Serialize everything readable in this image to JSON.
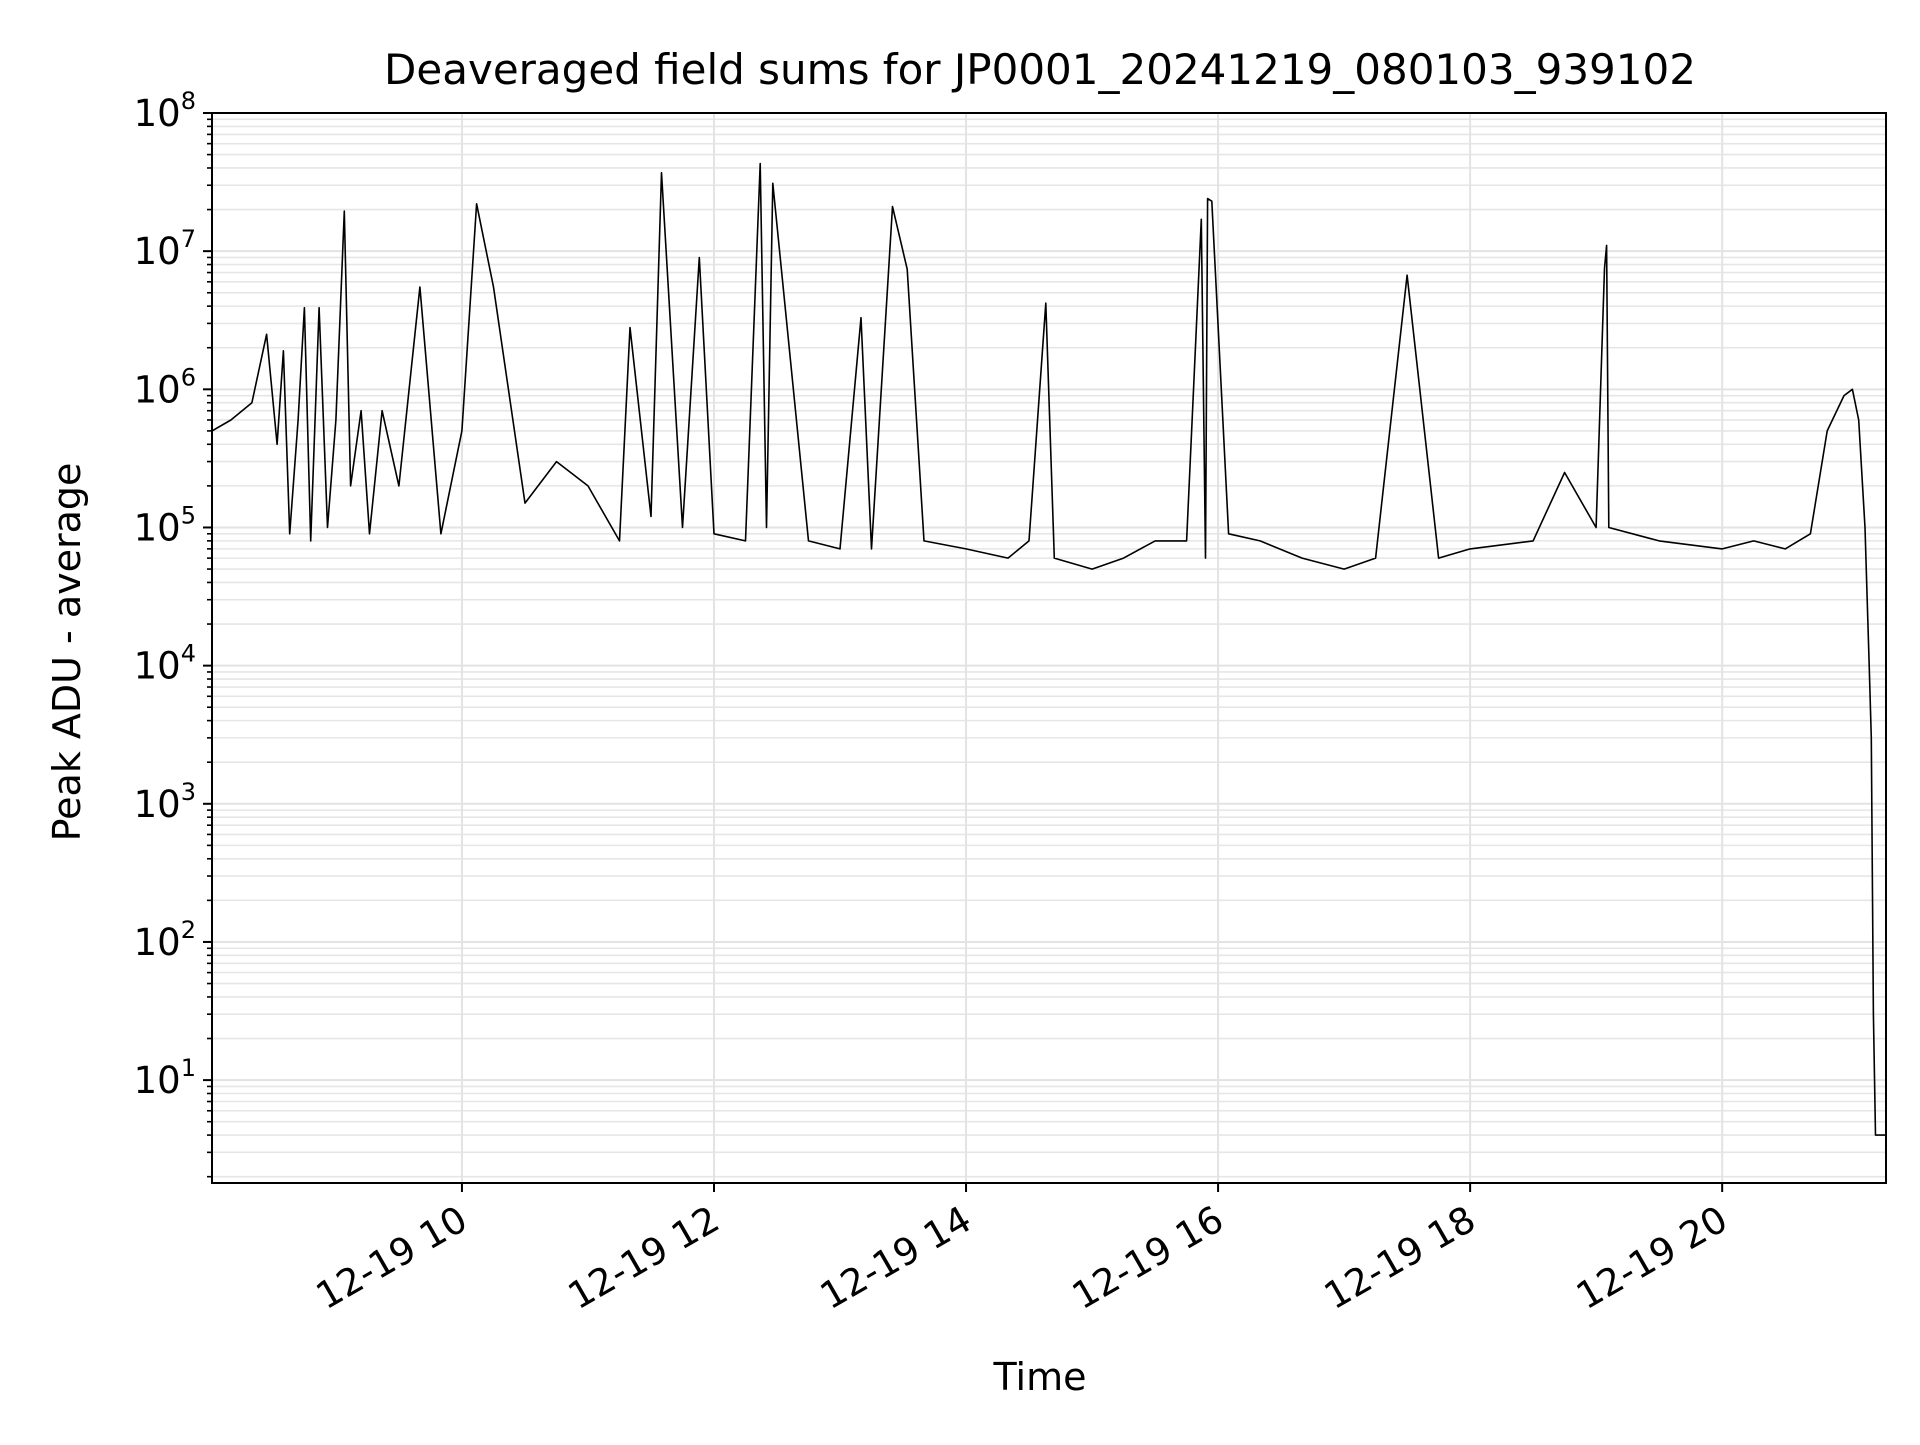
{
  "chart_data": {
    "type": "line",
    "title": "Deaveraged field sums for JP0001_20241219_080103_939102",
    "xlabel": "Time",
    "ylabel": "Peak ADU - average",
    "xscale": "time",
    "yscale": "log",
    "xlim": [
      "2024-12-19 08:01",
      "2024-12-19 21:18"
    ],
    "ylim": [
      1.8,
      100000000
    ],
    "grid": true,
    "x_ticks": [
      {
        "value": "2024-12-19 10:00",
        "label": "12-19 10"
      },
      {
        "value": "2024-12-19 12:00",
        "label": "12-19 12"
      },
      {
        "value": "2024-12-19 14:00",
        "label": "12-19 14"
      },
      {
        "value": "2024-12-19 16:00",
        "label": "12-19 16"
      },
      {
        "value": "2024-12-19 18:00",
        "label": "12-19 18"
      },
      {
        "value": "2024-12-19 20:00",
        "label": "12-19 20"
      }
    ],
    "y_ticks": [
      {
        "value": 10,
        "base": "10",
        "exp": "1"
      },
      {
        "value": 100,
        "base": "10",
        "exp": "2"
      },
      {
        "value": 1000,
        "base": "10",
        "exp": "3"
      },
      {
        "value": 10000,
        "base": "10",
        "exp": "4"
      },
      {
        "value": 100000,
        "base": "10",
        "exp": "5"
      },
      {
        "value": 1000000,
        "base": "10",
        "exp": "6"
      },
      {
        "value": 10000000,
        "base": "10",
        "exp": "7"
      },
      {
        "value": 100000000,
        "base": "10",
        "exp": "8"
      }
    ],
    "series": [
      {
        "color": "#000000",
        "x": [
          "2024-12-19 08:01",
          "2024-12-19 08:10",
          "2024-12-19 08:20",
          "2024-12-19 08:27",
          "2024-12-19 08:32",
          "2024-12-19 08:35",
          "2024-12-19 08:38",
          "2024-12-19 08:42",
          "2024-12-19 08:45",
          "2024-12-19 08:48",
          "2024-12-19 08:52",
          "2024-12-19 08:56",
          "2024-12-19 09:00",
          "2024-12-19 09:04",
          "2024-12-19 09:07",
          "2024-12-19 09:12",
          "2024-12-19 09:16",
          "2024-12-19 09:22",
          "2024-12-19 09:30",
          "2024-12-19 09:40",
          "2024-12-19 09:50",
          "2024-12-19 10:00",
          "2024-12-19 10:07",
          "2024-12-19 10:15",
          "2024-12-19 10:30",
          "2024-12-19 10:45",
          "2024-12-19 11:00",
          "2024-12-19 11:15",
          "2024-12-19 11:20",
          "2024-12-19 11:30",
          "2024-12-19 11:35",
          "2024-12-19 11:45",
          "2024-12-19 11:53",
          "2024-12-19 12:00",
          "2024-12-19 12:15",
          "2024-12-19 12:22",
          "2024-12-19 12:25",
          "2024-12-19 12:28",
          "2024-12-19 12:45",
          "2024-12-19 13:00",
          "2024-12-19 13:10",
          "2024-12-19 13:15",
          "2024-12-19 13:25",
          "2024-12-19 13:32",
          "2024-12-19 13:40",
          "2024-12-19 14:00",
          "2024-12-19 14:20",
          "2024-12-19 14:30",
          "2024-12-19 14:38",
          "2024-12-19 14:42",
          "2024-12-19 15:00",
          "2024-12-19 15:15",
          "2024-12-19 15:30",
          "2024-12-19 15:45",
          "2024-12-19 15:52",
          "2024-12-19 15:54",
          "2024-12-19 15:55",
          "2024-12-19 15:57",
          "2024-12-19 16:05",
          "2024-12-19 16:20",
          "2024-12-19 16:40",
          "2024-12-19 17:00",
          "2024-12-19 17:15",
          "2024-12-19 17:30",
          "2024-12-19 17:45",
          "2024-12-19 18:00",
          "2024-12-19 18:30",
          "2024-12-19 18:45",
          "2024-12-19 19:00",
          "2024-12-19 19:04",
          "2024-12-19 19:05",
          "2024-12-19 19:06",
          "2024-12-19 19:30",
          "2024-12-19 20:00",
          "2024-12-19 20:15",
          "2024-12-19 20:30",
          "2024-12-19 20:42",
          "2024-12-19 20:50",
          "2024-12-19 20:58",
          "2024-12-19 21:02",
          "2024-12-19 21:05",
          "2024-12-19 21:08",
          "2024-12-19 21:10",
          "2024-12-19 21:11",
          "2024-12-19 21:12",
          "2024-12-19 21:13",
          "2024-12-19 21:14",
          "2024-12-19 21:15",
          "2024-12-19 21:18"
        ],
        "y": [
          500000,
          600000,
          800000,
          2500000,
          400000,
          1900000,
          90000,
          600000,
          3900000,
          80000,
          3900000,
          100000,
          600000,
          19500000,
          200000,
          700000,
          90000,
          700000,
          200000,
          5500000,
          90000,
          500000,
          22000000,
          5500000,
          150000,
          300000,
          200000,
          80000,
          2800000,
          120000,
          37000000,
          100000,
          9000000,
          90000,
          80000,
          43000000,
          100000,
          31000000,
          80000,
          70000,
          3300000,
          70000,
          21000000,
          7400000,
          80000,
          70000,
          60000,
          80000,
          4200000,
          60000,
          50000,
          60000,
          80000,
          80000,
          17000000,
          60000,
          24000000,
          23000000,
          90000,
          80000,
          60000,
          50000,
          60000,
          6700000,
          60000,
          70000,
          80000,
          250000,
          100000,
          7500000,
          11000000,
          100000,
          80000,
          70000,
          80000,
          70000,
          90000,
          500000,
          900000,
          1000000,
          600000,
          100000,
          10000,
          3000,
          30,
          4,
          4,
          4,
          4
        ]
      }
    ]
  }
}
